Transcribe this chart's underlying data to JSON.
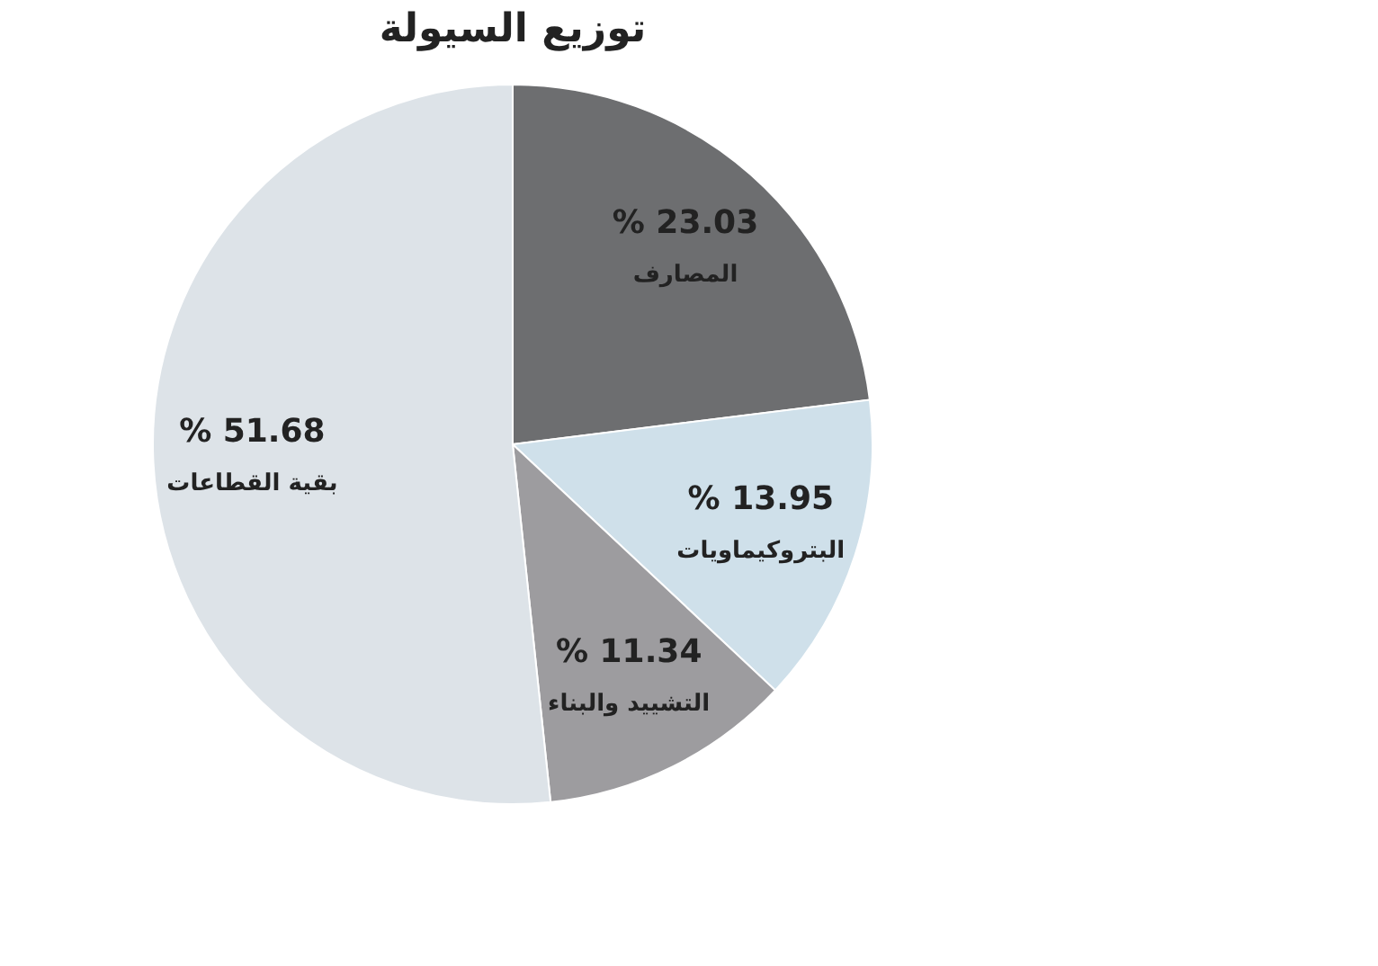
{
  "chart_data": {
    "type": "pie",
    "title": "توزيع السيولة",
    "categories": [
      "المصارف",
      "البتروكيماويات",
      "التشييد والبناء",
      "بقية القطاعات"
    ],
    "values": [
      23.03,
      13.95,
      11.34,
      51.68
    ],
    "colors": [
      "#6d6e70",
      "#cfe0ea",
      "#9d9c9f",
      "#dde3e8"
    ],
    "value_labels": [
      "% 23.03",
      "% 13.95",
      "% 11.34",
      "% 51.68"
    ],
    "legend": false
  }
}
